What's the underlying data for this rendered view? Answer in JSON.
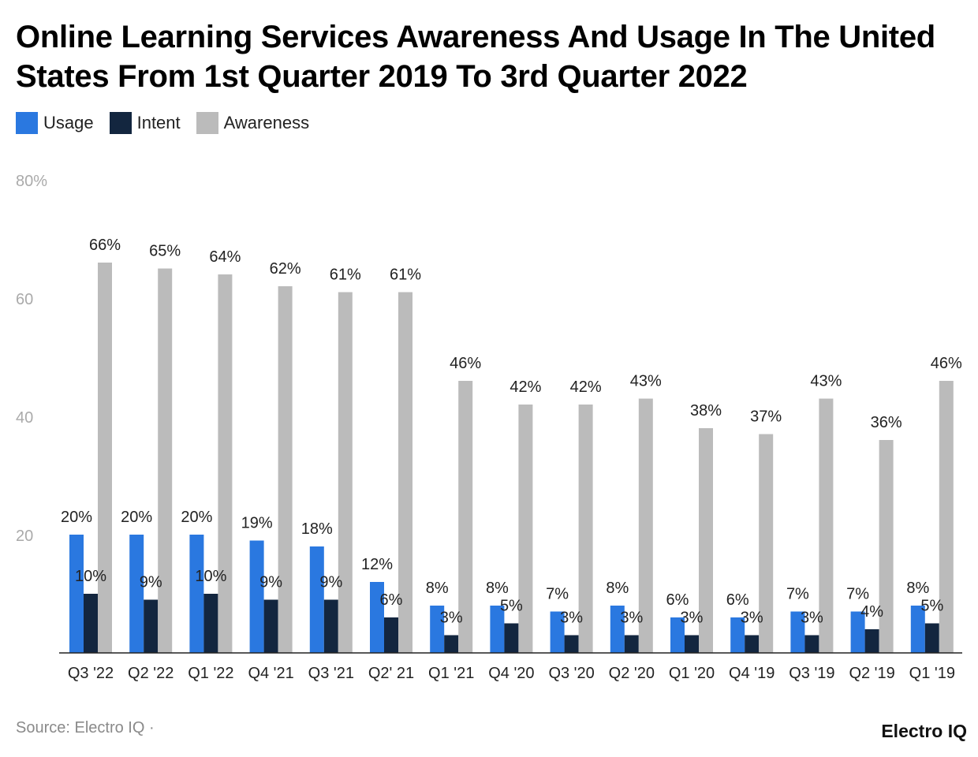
{
  "chart_data": {
    "type": "bar",
    "title": "Online Learning Services Awareness And Usage In The United States From 1st Quarter 2019 To 3rd Quarter 2022",
    "categories": [
      "Q3 '22",
      "Q2 '22",
      "Q1 '22",
      "Q4 '21",
      "Q3 '21",
      "Q2' 21",
      "Q1 '21",
      "Q4 '20",
      "Q3 '20",
      "Q2 '20",
      "Q1 '20",
      "Q4 '19",
      "Q3 '19",
      "Q2 '19",
      "Q1 '19"
    ],
    "series": [
      {
        "name": "Usage",
        "color": "#2a78e0",
        "values": [
          20,
          20,
          20,
          19,
          18,
          12,
          8,
          8,
          7,
          8,
          6,
          6,
          7,
          7,
          8
        ]
      },
      {
        "name": "Intent",
        "color": "#13263f",
        "values": [
          10,
          9,
          10,
          9,
          9,
          6,
          3,
          5,
          3,
          3,
          3,
          3,
          3,
          4,
          5
        ]
      },
      {
        "name": "Awareness",
        "color": "#bbbbbb",
        "values": [
          66,
          65,
          64,
          62,
          61,
          61,
          46,
          42,
          42,
          43,
          38,
          37,
          43,
          36,
          46
        ]
      }
    ],
    "yticks": [
      "20",
      "40",
      "60",
      "80%"
    ],
    "ytick_values": [
      20,
      40,
      60,
      80
    ],
    "ylim": [
      0,
      80
    ],
    "label_suffix": "%",
    "legend_position": "top-left",
    "grid": false
  },
  "footer": {
    "source": "Source: Electro IQ ·",
    "brand": "Electro IQ"
  }
}
